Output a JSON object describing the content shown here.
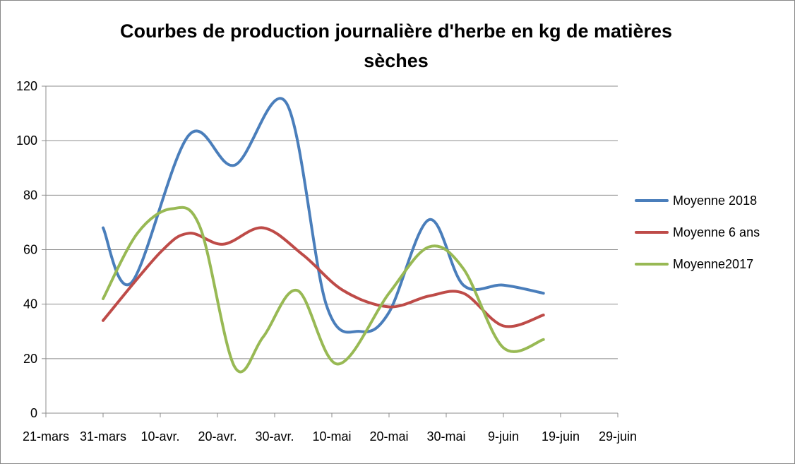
{
  "chart_data": {
    "type": "line",
    "title_lines": [
      "Courbes de production journalière d'herbe en kg de matières",
      "sèches"
    ],
    "xlabel": "",
    "ylabel": "",
    "ylim": [
      0,
      120
    ],
    "yticks": [
      0,
      20,
      40,
      60,
      80,
      100,
      120
    ],
    "x_tick_labels": [
      "21-mars",
      "31-mars",
      "10-avr.",
      "20-avr.",
      "30-avr.",
      "10-mai",
      "20-mai",
      "30-mai",
      "9-juin",
      "19-juin",
      "29-juin"
    ],
    "grid": "horizontal",
    "legend_position": "right",
    "smooth": true,
    "series": [
      {
        "name": "Moyenne 2018",
        "color": "#4a7ebb",
        "points": [
          {
            "x": "31-mars",
            "y": 68
          },
          {
            "x": "5-avr.",
            "y": 48
          },
          {
            "x": "15-avr.",
            "y": 102
          },
          {
            "x": "23-avr.",
            "y": 91
          },
          {
            "x": "2-mai",
            "y": 114
          },
          {
            "x": "9-mai",
            "y": 40
          },
          {
            "x": "15-mai",
            "y": 30
          },
          {
            "x": "20-mai",
            "y": 37
          },
          {
            "x": "27-mai",
            "y": 71
          },
          {
            "x": "2-juin",
            "y": 47
          },
          {
            "x": "9-juin",
            "y": 47
          },
          {
            "x": "16-juin",
            "y": 44
          }
        ]
      },
      {
        "name": "Moyenne 6 ans",
        "color": "#be4b48",
        "points": [
          {
            "x": "31-mars",
            "y": 34
          },
          {
            "x": "10-avr.",
            "y": 59
          },
          {
            "x": "15-avr.",
            "y": 66
          },
          {
            "x": "21-avr.",
            "y": 62
          },
          {
            "x": "28-avr.",
            "y": 68
          },
          {
            "x": "5-mai",
            "y": 58
          },
          {
            "x": "12-mai",
            "y": 45
          },
          {
            "x": "20-mai",
            "y": 39
          },
          {
            "x": "27-mai",
            "y": 43
          },
          {
            "x": "2-juin",
            "y": 44
          },
          {
            "x": "9-juin",
            "y": 32
          },
          {
            "x": "16-juin",
            "y": 36
          }
        ]
      },
      {
        "name": "Moyenne2017",
        "color": "#98b954",
        "points": [
          {
            "x": "31-mars",
            "y": 42
          },
          {
            "x": "6-avr.",
            "y": 66
          },
          {
            "x": "12-avr.",
            "y": 75
          },
          {
            "x": "17-avr.",
            "y": 68
          },
          {
            "x": "23-avr.",
            "y": 17
          },
          {
            "x": "28-avr.",
            "y": 28
          },
          {
            "x": "4-mai",
            "y": 45
          },
          {
            "x": "11-mai",
            "y": 18
          },
          {
            "x": "20-mai",
            "y": 44
          },
          {
            "x": "27-mai",
            "y": 61
          },
          {
            "x": "2-juin",
            "y": 53
          },
          {
            "x": "9-juin",
            "y": 24
          },
          {
            "x": "16-juin",
            "y": 27
          }
        ]
      }
    ]
  }
}
